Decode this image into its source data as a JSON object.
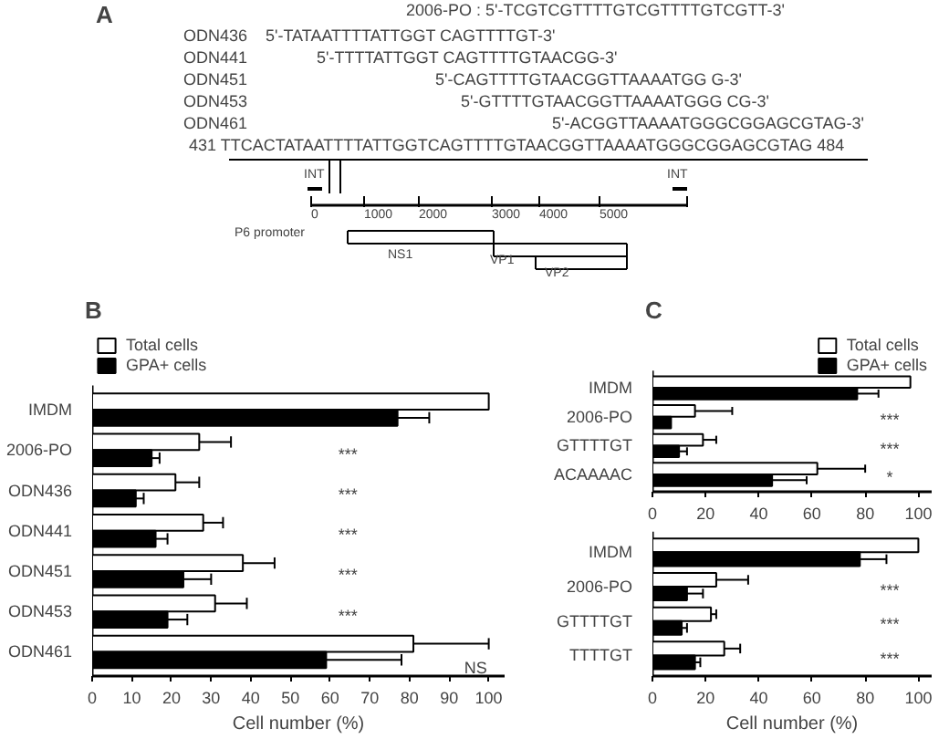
{
  "chart_data": [
    {
      "type": "other",
      "title": "A",
      "annotations": [
        "2006-PO : 5'-TCGTCGTTTTGTCGTTTTGTCGTT-3'",
        "ODN436",
        "5'-TATAATTTTATTGGT CAGTTTTGT-3'",
        "ODN441",
        "5'-TTTTATTGGT CAGTTTTGTAACGG-3'",
        "ODN451",
        "5'-CAGTTTTGTAACGGTTAAAATGG G-3'",
        "ODN453",
        "5'-GTTTTGTAACGGTTAAAATGGG CG-3'",
        "ODN461",
        "5'-ACGGTTAAAATGGGCGGAGCGTAG-3'",
        "431 TTCACTATAATTTTATTGGTCAGTTTTGTAACGGTTAAAATGGGCGGAGCGTAG 484",
        "INT",
        "INT",
        "0",
        "1000",
        "2000",
        "3000",
        "4000",
        "5000",
        "P6 promoter",
        "NS1",
        "VP1",
        "VP2"
      ]
    },
    {
      "type": "bar",
      "orientation": "horizontal",
      "title": "B",
      "xlabel": "Cell number (%)",
      "categories": [
        "IMDM",
        "2006-PO",
        "ODN436",
        "ODN441",
        "ODN451",
        "ODN453",
        "ODN461"
      ],
      "series": [
        {
          "name": "Total cells",
          "color": "#ffffff",
          "values": [
            100,
            27,
            21,
            28,
            38,
            31,
            81
          ],
          "errors": [
            null,
            8,
            6,
            5,
            8,
            8,
            19
          ]
        },
        {
          "name": "GPA+ cells",
          "color": "#000000",
          "values": [
            77,
            15,
            11,
            16,
            23,
            19,
            59
          ],
          "errors": [
            8,
            2,
            2,
            3,
            7,
            5,
            19
          ]
        }
      ],
      "xlim": [
        0,
        104
      ],
      "xticks": [
        0,
        10,
        20,
        30,
        40,
        50,
        60,
        70,
        80,
        90,
        100
      ],
      "legend": "top left",
      "grid": false,
      "annotations": [
        "***",
        "***",
        "***",
        "***",
        "***",
        "NS"
      ]
    },
    {
      "type": "bar",
      "orientation": "horizontal",
      "title": "C",
      "categories": [
        "IMDM",
        "2006-PO",
        "GTTTTGT",
        "ACAAAAC"
      ],
      "series": [
        {
          "name": "Total cells",
          "color": "#ffffff",
          "values": [
            97,
            16,
            19,
            62
          ],
          "errors": [
            null,
            14,
            5,
            18
          ]
        },
        {
          "name": "GPA+ cells",
          "color": "#000000",
          "values": [
            77,
            7,
            10,
            45
          ],
          "errors": [
            8,
            null,
            3,
            13
          ]
        }
      ],
      "xlim": [
        0,
        105
      ],
      "xticks": [
        0,
        20,
        40,
        60,
        80,
        100
      ],
      "legend": "top right",
      "grid": false,
      "annotations": [
        "***",
        "***",
        "*"
      ]
    },
    {
      "type": "bar",
      "orientation": "horizontal",
      "xlabel": "Cell number (%)",
      "categories": [
        "IMDM",
        "2006-PO",
        "GTTTTGT",
        "TTTTGT"
      ],
      "series": [
        {
          "color": "#ffffff",
          "values": [
            100,
            24,
            22,
            27
          ],
          "errors": [
            null,
            12,
            2,
            6
          ]
        },
        {
          "color": "#000000",
          "values": [
            78,
            13,
            11,
            16
          ],
          "errors": [
            10,
            6,
            2,
            2
          ]
        }
      ],
      "xlim": [
        0,
        105
      ],
      "xticks": [
        0,
        20,
        40,
        60,
        80,
        100
      ],
      "grid": false,
      "annotations": [
        "***",
        "***",
        "***"
      ]
    }
  ]
}
